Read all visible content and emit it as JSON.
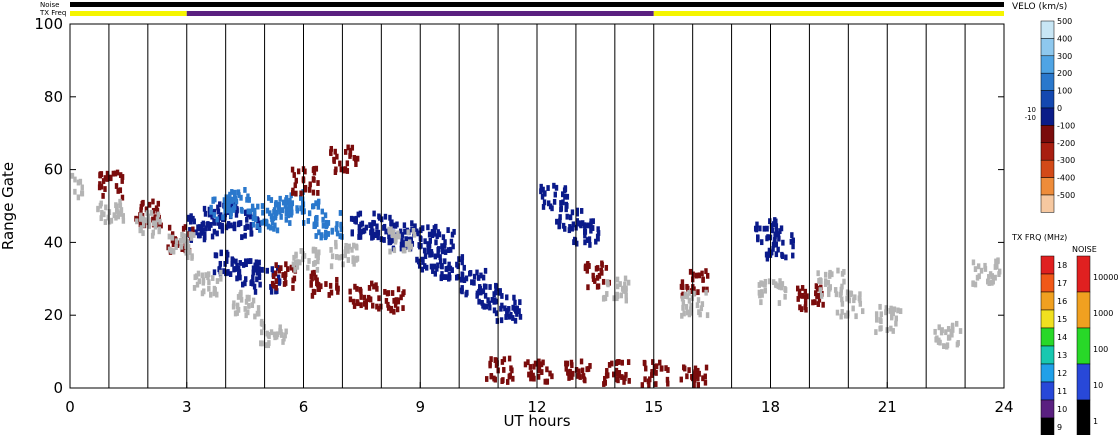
{
  "chart_data": {
    "type": "heatmap",
    "title": "",
    "xlabel": "UT hours",
    "ylabel": "Range Gate",
    "xlim": [
      0,
      24
    ],
    "ylim": [
      0,
      100
    ],
    "x_ticks": [
      "0",
      "3",
      "6",
      "9",
      "12",
      "15",
      "18",
      "21",
      "24"
    ],
    "y_ticks": [
      "0",
      "20",
      "40",
      "60",
      "80",
      "100"
    ],
    "grid": "vertical lines each hour",
    "status_bars": {
      "noise_label": "Noise",
      "txfreq_label": "TX Freq",
      "noise_segments": [
        {
          "from": 0,
          "to": 24,
          "color": "#000000"
        }
      ],
      "txfreq_segments": [
        {
          "from": 0,
          "to": 3,
          "color": "#f5f500"
        },
        {
          "from": 3,
          "to": 15,
          "color": "#5a2080"
        },
        {
          "from": 15,
          "to": 24,
          "color": "#f5f500"
        }
      ]
    },
    "velocity_scale": {
      "title": "VELO (km/s)",
      "ticks": [
        "500",
        "400",
        "300",
        "200",
        "100",
        "0",
        "-100",
        "-200",
        "-300",
        "-400",
        "-500"
      ],
      "inner_ticks": [
        "10",
        "-10"
      ],
      "colors": [
        "#c8e6f5",
        "#8ec8ee",
        "#4fa4e4",
        "#2a78cc",
        "#1448b0",
        "#0a1c88",
        "#7a0c0c",
        "#a81e10",
        "#d24a18",
        "#ee8c3a",
        "#f6c8a0"
      ]
    },
    "txfreq_scale": {
      "title": "TX FRQ (MHz)",
      "ticks": [
        "18",
        "17",
        "16",
        "15",
        "14",
        "13",
        "12",
        "11",
        "10",
        "9"
      ],
      "colors": [
        "#e02020",
        "#f05818",
        "#f0a020",
        "#f0e020",
        "#28d828",
        "#18c8b0",
        "#20a0e8",
        "#2848d8",
        "#5a2080",
        "#000000"
      ]
    },
    "noise_scale": {
      "title": "NOISE",
      "ticks": [
        "10000",
        "1000",
        "100",
        "10",
        "1"
      ],
      "colors": [
        "#e02020",
        "#f0a020",
        "#28d828",
        "#2848d8",
        "#000000"
      ]
    },
    "series": [
      {
        "name": "",
        "color": "#0a1a8a",
        "points": [
          [
            3.3,
            43
          ],
          [
            3.7,
            45
          ],
          [
            4.1,
            47
          ],
          [
            4.5,
            44
          ],
          [
            7.5,
            44
          ],
          [
            8,
            43
          ],
          [
            8.5,
            41
          ],
          [
            9,
            40
          ],
          [
            9.5,
            40
          ],
          [
            9.2,
            34
          ],
          [
            9.8,
            32
          ],
          [
            10.3,
            28
          ],
          [
            10.8,
            24
          ],
          [
            11.2,
            21
          ],
          [
            4,
            33
          ],
          [
            4.5,
            31
          ],
          [
            5,
            29
          ],
          [
            12.4,
            52
          ],
          [
            12.8,
            46
          ],
          [
            13.2,
            42
          ],
          [
            17.9,
            42
          ],
          [
            18.2,
            38
          ]
        ]
      },
      {
        "name": "",
        "color": "#2a78cc",
        "points": [
          [
            5,
            46
          ],
          [
            5.3,
            48
          ],
          [
            5.6,
            50
          ],
          [
            6.2,
            47
          ],
          [
            6.6,
            44
          ],
          [
            3.9,
            49
          ],
          [
            4.3,
            51
          ]
        ]
      },
      {
        "name": "",
        "color": "#7a0c0c",
        "points": [
          [
            1,
            55
          ],
          [
            2,
            47
          ],
          [
            2.8,
            40
          ],
          [
            5.5,
            30
          ],
          [
            6.5,
            28
          ],
          [
            7.5,
            25
          ],
          [
            8.2,
            23
          ],
          [
            6,
            56
          ],
          [
            7,
            62
          ],
          [
            12,
            3
          ],
          [
            13,
            3
          ],
          [
            14,
            3
          ],
          [
            15,
            3
          ],
          [
            11,
            4
          ],
          [
            16,
            2
          ],
          [
            13.5,
            30
          ],
          [
            16,
            28
          ],
          [
            19,
            24
          ]
        ]
      },
      {
        "name": "",
        "color": "#b4b4b4",
        "points": [
          [
            0,
            54
          ],
          [
            1,
            48
          ],
          [
            2,
            44
          ],
          [
            2.8,
            38
          ],
          [
            3.5,
            28
          ],
          [
            4.5,
            22
          ],
          [
            5.2,
            14
          ],
          [
            6,
            35
          ],
          [
            7,
            36
          ],
          [
            8.5,
            40
          ],
          [
            14,
            26
          ],
          [
            16,
            22
          ],
          [
            18,
            26
          ],
          [
            19.5,
            28
          ],
          [
            20,
            22
          ],
          [
            21,
            18
          ],
          [
            22.5,
            14
          ],
          [
            23.5,
            31
          ]
        ]
      }
    ]
  }
}
